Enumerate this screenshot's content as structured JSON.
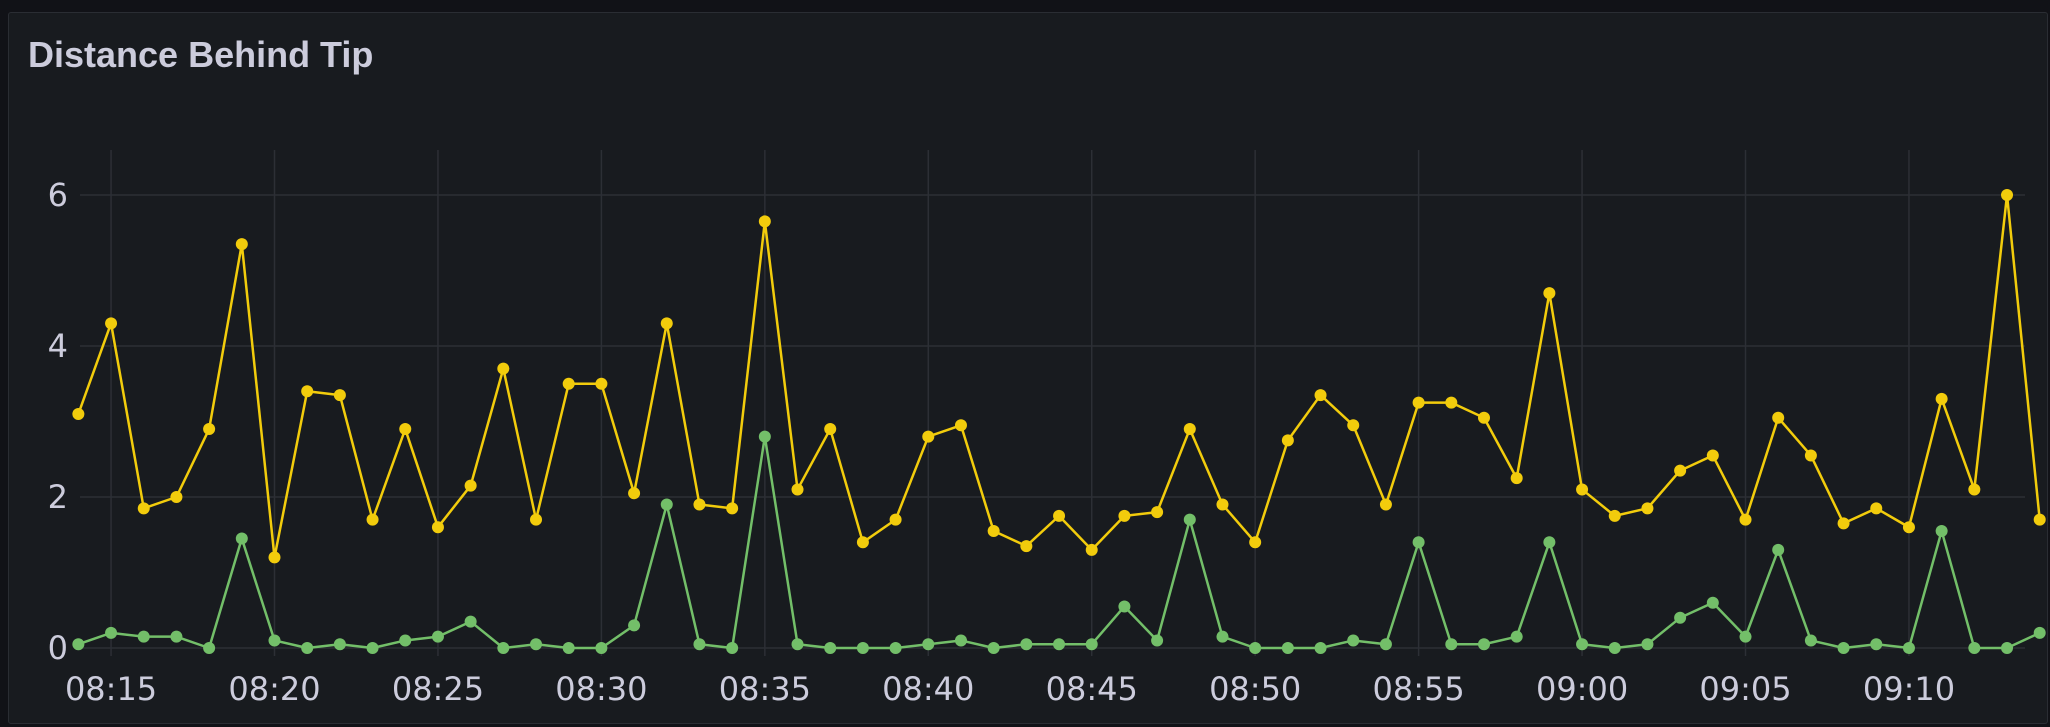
{
  "panel": {
    "title": "Distance Behind Tip"
  },
  "chart_data": {
    "type": "line",
    "title": "Distance Behind Tip",
    "xlabel": "",
    "ylabel": "",
    "ylim": [
      0,
      6.5
    ],
    "xlim": [
      14.05,
      73.55
    ],
    "grid": true,
    "legend": "none",
    "y_ticks": [
      0,
      2,
      4,
      6
    ],
    "x_tick_minutes": [
      15,
      20,
      25,
      30,
      35,
      40,
      45,
      50,
      55,
      60,
      65,
      70
    ],
    "x_tick_labels": [
      "08:15",
      "08:20",
      "08:25",
      "08:30",
      "08:35",
      "08:40",
      "08:45",
      "08:50",
      "08:55",
      "09:00",
      "09:05",
      "09:10"
    ],
    "x_minutes_note": "minutes after 08:00",
    "x": [
      14,
      15,
      16,
      17,
      18,
      19,
      20,
      21,
      22,
      23,
      24,
      25,
      26,
      27,
      28,
      29,
      30,
      31,
      32,
      33,
      34,
      35,
      36,
      37,
      38,
      39,
      40,
      41,
      42,
      43,
      44,
      45,
      46,
      47,
      48,
      49,
      50,
      51,
      52,
      53,
      54,
      55,
      56,
      57,
      58,
      59,
      60,
      61,
      62,
      63,
      64,
      65,
      66,
      67,
      68,
      69,
      70,
      71,
      72,
      73,
      74
    ],
    "series": [
      {
        "color": "#f2cc0c",
        "values": [
          3.1,
          4.3,
          1.85,
          2.0,
          2.9,
          5.35,
          1.2,
          3.4,
          3.35,
          1.7,
          2.9,
          1.6,
          2.15,
          3.7,
          1.7,
          3.5,
          3.5,
          2.05,
          4.3,
          1.9,
          1.85,
          5.65,
          2.1,
          2.9,
          1.4,
          1.7,
          2.8,
          2.95,
          1.55,
          1.35,
          1.75,
          1.3,
          1.75,
          1.8,
          2.9,
          1.9,
          1.4,
          2.75,
          3.35,
          2.95,
          1.9,
          3.25,
          3.25,
          3.05,
          2.25,
          4.7,
          2.1,
          1.75,
          1.85,
          2.35,
          2.55,
          1.7,
          3.05,
          2.55,
          1.65,
          1.85,
          1.6,
          3.3,
          2.1,
          6.0,
          1.7
        ]
      },
      {
        "color": "#73bf69",
        "values": [
          0.05,
          0.2,
          0.15,
          0.15,
          0.0,
          1.45,
          0.1,
          0.0,
          0.05,
          0.0,
          0.1,
          0.15,
          0.35,
          0.0,
          0.05,
          0.0,
          0.0,
          0.3,
          1.9,
          0.05,
          0.0,
          2.8,
          0.05,
          0.0,
          0.0,
          0.0,
          0.05,
          0.1,
          0.0,
          0.05,
          0.05,
          0.05,
          0.55,
          0.1,
          1.7,
          0.15,
          0.0,
          0.0,
          0.0,
          0.1,
          0.05,
          1.4,
          0.05,
          0.05,
          0.15,
          1.4,
          0.05,
          0.0,
          0.05,
          0.4,
          0.6,
          0.15,
          1.3,
          0.1,
          0.0,
          0.05,
          0.0,
          1.55,
          0.0,
          0.0,
          0.2
        ]
      }
    ]
  }
}
